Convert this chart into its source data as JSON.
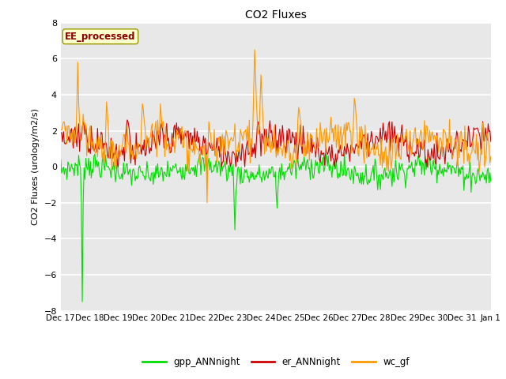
{
  "title": "CO2 Fluxes",
  "ylabel": "CO2 Fluxes (urology/m2/s)",
  "ylim": [
    -8,
    8
  ],
  "yticks": [
    -8,
    -6,
    -4,
    -2,
    0,
    2,
    4,
    6,
    8
  ],
  "bg_color": "#e8e8e8",
  "fig_bg": "#ffffff",
  "grid_color": "#ffffff",
  "legend_label": "EE_processed",
  "legend_bg": "#ffffcc",
  "legend_border": "#999900",
  "legend_text_color": "#880000",
  "gpp_color": "#00dd00",
  "er_color": "#cc0000",
  "wc_color": "#ff9900",
  "xtick_labels": [
    "Dec 17",
    "Dec 18",
    "Dec 19",
    "Dec 20",
    "Dec 21",
    "Dec 22",
    "Dec 23",
    "Dec 24",
    "Dec 25",
    "Dec 26",
    "Dec 27",
    "Dec 28",
    "Dec 29",
    "Dec 30",
    "Dec 31",
    "Jan 1"
  ],
  "n_points": 480,
  "seed": 7
}
